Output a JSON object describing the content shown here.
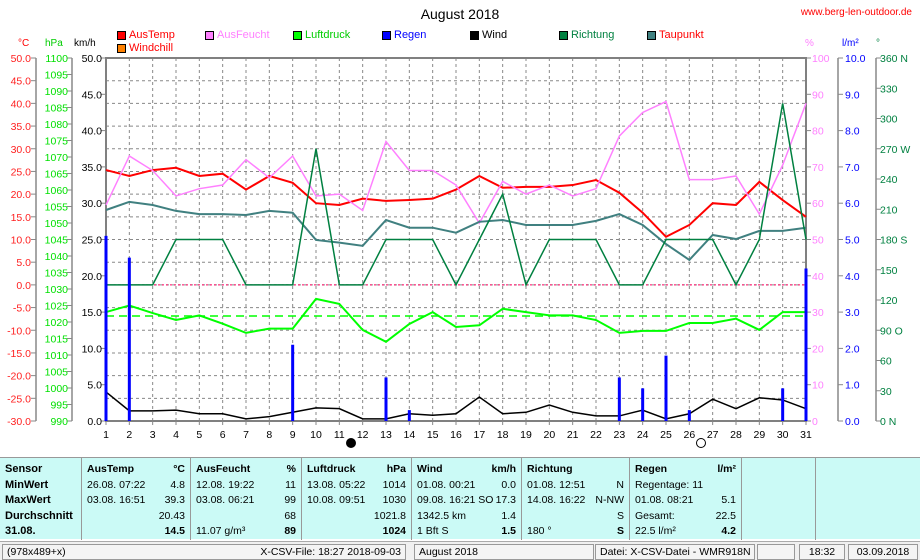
{
  "header": {
    "title": "August 2018",
    "site": "www.berg-len-outdoor.de"
  },
  "legend": [
    {
      "label": "AusTemp",
      "color": "#ff0000",
      "text": "#ff0000"
    },
    {
      "label": "AusFeucht",
      "color": "#ff80ff",
      "text": "#ff80ff"
    },
    {
      "label": "Luftdruck",
      "color": "#00ff00",
      "text": "#00cc00"
    },
    {
      "label": "Regen",
      "color": "#0000ff",
      "text": "#0000ff"
    },
    {
      "label": "Wind",
      "color": "#000000",
      "text": "#000000"
    },
    {
      "label": "Richtung",
      "color": "#008040",
      "text": "#008040"
    },
    {
      "label": "Taupunkt",
      "color": "#408080",
      "text": "#ff0000"
    },
    {
      "label": "Windchill",
      "color": "#ff8000",
      "text": "#ff0000"
    }
  ],
  "units": {
    "temp": "°C",
    "press": "hPa",
    "wind": "km/h",
    "hum": "%",
    "rain": "l/m²",
    "dir": "°"
  },
  "chart_data": {
    "type": "line",
    "title": "August 2018",
    "x": [
      1,
      2,
      3,
      4,
      5,
      6,
      7,
      8,
      9,
      10,
      11,
      12,
      13,
      14,
      15,
      16,
      17,
      18,
      19,
      20,
      21,
      22,
      23,
      24,
      25,
      26,
      27,
      28,
      29,
      30,
      31
    ],
    "axes": {
      "temp": {
        "range": [
          -30,
          50
        ],
        "ticks": [
          "50.0",
          "45.0",
          "40.0",
          "35.0",
          "30.0",
          "25.0",
          "20.0",
          "15.0",
          "10.0",
          "5.0",
          "0.0",
          "-5.0",
          "-10.0",
          "-15.0",
          "-20.0",
          "-25.0",
          "-30.0"
        ]
      },
      "press": {
        "range": [
          990,
          1100
        ],
        "ticks": [
          "1100",
          "1095",
          "1090",
          "1085",
          "1080",
          "1075",
          "1070",
          "1065",
          "1060",
          "1055",
          "1050",
          "1045",
          "1040",
          "1035",
          "1030",
          "1025",
          "1020",
          "1015",
          "1010",
          "1005",
          "1000",
          "995",
          "990"
        ]
      },
      "wind": {
        "range": [
          0,
          50
        ],
        "ticks": [
          "50.0",
          "45.0",
          "40.0",
          "35.0",
          "30.0",
          "25.0",
          "20.0",
          "15.0",
          "10.0",
          "5.0",
          "0.0"
        ]
      },
      "hum": {
        "range": [
          0,
          100
        ],
        "ticks": [
          "100",
          "90",
          "80",
          "70",
          "60",
          "50",
          "40",
          "30",
          "20",
          "10",
          "0"
        ]
      },
      "rain": {
        "range": [
          0,
          10
        ],
        "ticks": [
          "10.0",
          "9.0",
          "8.0",
          "7.0",
          "6.0",
          "5.0",
          "4.0",
          "3.0",
          "2.0",
          "1.0",
          "0.0"
        ]
      },
      "dir": {
        "range": [
          0,
          360
        ],
        "ticks": [
          "360 N",
          "330",
          "300",
          "270 W",
          "240",
          "210",
          "180 S",
          "150",
          "120",
          "90  O",
          "60",
          "30",
          "0    N"
        ]
      }
    },
    "series": [
      {
        "name": "AusTemp",
        "axis": "temp",
        "color": "#ff0000",
        "values": [
          25.3,
          24,
          25.3,
          25.8,
          24,
          24.5,
          21,
          24,
          22.5,
          18,
          17.6,
          19,
          18.5,
          18.7,
          19,
          21,
          24,
          21.4,
          21.6,
          21.6,
          22,
          23.1,
          20.3,
          15.9,
          10.6,
          13.2,
          18,
          17.6,
          22.7,
          18.7,
          15
        ]
      },
      {
        "name": "AusFeucht",
        "axis": "hum",
        "color": "#ff80ff",
        "values": [
          59.5,
          73,
          69,
          62,
          64,
          65,
          72,
          67,
          73,
          62,
          62.5,
          58,
          77,
          69,
          69,
          65,
          54.5,
          66,
          62.5,
          65,
          62,
          64,
          78.5,
          85,
          88,
          66.5,
          66.5,
          67.5,
          57,
          70.5,
          87.5
        ]
      },
      {
        "name": "Luftdruck",
        "axis": "press",
        "color": "#00ff00",
        "values": [
          1023,
          1025,
          1022.7,
          1020.6,
          1022,
          1019.5,
          1016.7,
          1018,
          1018,
          1027,
          1025.5,
          1017.6,
          1014,
          1019.4,
          1023,
          1018.5,
          1019,
          1024,
          1023,
          1022,
          1022,
          1020.6,
          1016.7,
          1017.3,
          1017.3,
          1019.7,
          1019.7,
          1021,
          1017.6,
          1023,
          1023
        ]
      },
      {
        "name": "Taupunkt",
        "axis": "temp",
        "color": "#408080",
        "values": [
          16.5,
          18.3,
          17.6,
          16.3,
          15.6,
          15.6,
          15.4,
          16.3,
          15.9,
          9.9,
          9.3,
          8.6,
          14.3,
          12.6,
          12.6,
          11.5,
          13.9,
          14.3,
          13.2,
          13.2,
          13.2,
          14.1,
          15.6,
          13.2,
          9,
          5.5,
          11,
          10.1,
          11.9,
          11.9,
          12.6
        ]
      },
      {
        "name": "Richtung",
        "axis": "dir",
        "color": "#008040",
        "values": [
          135,
          135,
          135,
          180,
          180,
          180,
          135,
          135,
          135,
          270,
          135,
          135,
          180,
          180,
          180,
          135,
          180,
          225,
          135,
          180,
          180,
          180,
          135,
          135,
          180,
          180,
          180,
          135,
          180,
          315,
          180
        ]
      },
      {
        "name": "Wind",
        "axis": "wind",
        "color": "#000000",
        "values": [
          4,
          1.4,
          1.4,
          1.5,
          1,
          1,
          0.3,
          0.6,
          1.2,
          1.8,
          1.7,
          0.3,
          0.3,
          1,
          0.8,
          1,
          3.3,
          1,
          1.2,
          2.2,
          1.2,
          0.7,
          0.7,
          1.5,
          0.3,
          1,
          3,
          1.7,
          3.2,
          2.9,
          1.7
        ]
      },
      {
        "name": "Regen",
        "axis": "rain",
        "type": "bar",
        "color": "#0000ff",
        "values": [
          5.1,
          4.5,
          0,
          0,
          0,
          0,
          0,
          0,
          2.1,
          0,
          0,
          0,
          1.2,
          0.3,
          0,
          0,
          0,
          0,
          0,
          0,
          0,
          0,
          1.2,
          0.9,
          1.8,
          0.3,
          0,
          0,
          0,
          0.9,
          4.2
        ]
      }
    ],
    "reference_lines": [
      {
        "axis": "press",
        "value": 1021.8,
        "color": "#00ff00",
        "style": "dashed"
      },
      {
        "axis": "temp",
        "value": 0,
        "color": "#ff0060",
        "style": "dotted"
      }
    ],
    "moon": [
      {
        "day": 11.5,
        "phase": "new"
      },
      {
        "day": 26.5,
        "phase": "full"
      }
    ]
  },
  "table": {
    "sensor": {
      "h": "Sensor",
      "r1": "MinWert",
      "r2": "MaxWert",
      "r3": "Durchschnitt",
      "r4": "31.08."
    },
    "temp": {
      "h": "AusTemp",
      "u": "°C",
      "min_t": "26.08.  07:22",
      "min": "4.8",
      "max_t": "03.08.  16:51",
      "max": "39.3",
      "avg": "20.43",
      "cur": "14.5"
    },
    "hum": {
      "h": "AusFeucht",
      "u": "%",
      "min_t": "12.08.  19:22",
      "min": "11",
      "max_t": "03.08.  06:21",
      "max": "99",
      "avg": "68",
      "abs": "11.07 g/m³",
      "cur": "89"
    },
    "press": {
      "h": "Luftdruck",
      "u": "hPa",
      "min_t": "13.08.  05:22",
      "min": "1014",
      "max_t": "10.08.  09:51",
      "max": "1030",
      "avg": "1021.8",
      "cur": "1024"
    },
    "wind": {
      "h": "Wind",
      "u": "km/h",
      "min_t": "01.08.  00:21",
      "min": "0.0",
      "max_t": "09.08.  16:21 SO",
      "max": "17.3",
      "dist": "1342.5 km",
      "avg": "1.4",
      "bft": " 1 Bft S",
      "cur": "1.5"
    },
    "dir": {
      "h": "Richtung",
      "min_t": "01.08.  12:51",
      "min": "N",
      "max_t": "14.08.  16:22",
      "max": "N-NW",
      "avg": "S",
      "deg": "180 °",
      "cur": "S"
    },
    "rain": {
      "h": "Regen",
      "u": "l/m²",
      "days": "Regentage: 11",
      "max_t": "01.08.  08:21",
      "max": "5.1",
      "total_l": "Gesamt:",
      "total": "22.5",
      "sum": "22.5 l/m²",
      "cur": "4.2"
    }
  },
  "status": {
    "size": "(978x489+x)",
    "file": "X-CSV-File:  18:27  2018-09-03",
    "month": "August 2018",
    "source": "Datei: X-CSV-Datei - WMR918N",
    "time": "18:32",
    "date": "03.09.2018"
  }
}
